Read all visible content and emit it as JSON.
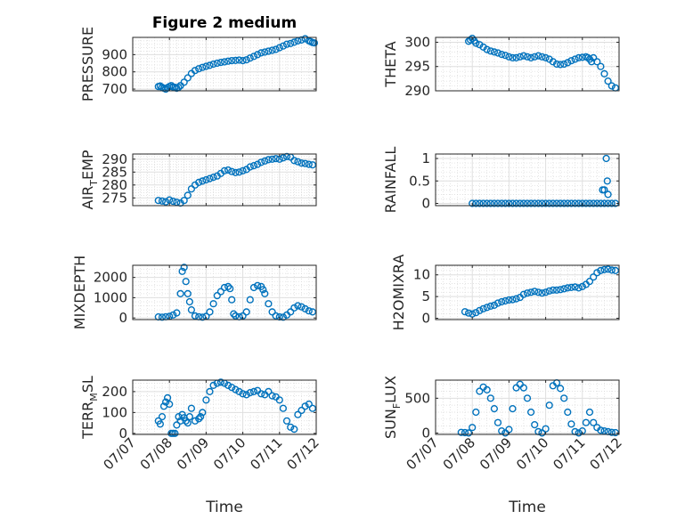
{
  "figure": {
    "title": "Figure 2 medium",
    "xlabel": "Time",
    "marker_color": "#0072BD",
    "xticks": [
      "07/07",
      "07/08",
      "07/09",
      "07/10",
      "07/11",
      "07/12"
    ]
  },
  "chart_data": [
    {
      "type": "scatter",
      "ylabel": "PRESSURE",
      "ylabel_sub": "",
      "yticks": [
        700,
        800,
        900
      ],
      "ylim": [
        690,
        1000
      ],
      "xlim": [
        0,
        5
      ],
      "x": [
        0.7,
        0.75,
        0.8,
        0.85,
        0.9,
        0.95,
        1.0,
        1.05,
        1.1,
        1.15,
        1.2,
        1.25,
        1.3,
        1.4,
        1.5,
        1.6,
        1.7,
        1.8,
        1.9,
        2.0,
        2.1,
        2.2,
        2.3,
        2.4,
        2.5,
        2.6,
        2.7,
        2.8,
        2.9,
        3.0,
        3.1,
        3.2,
        3.3,
        3.4,
        3.5,
        3.6,
        3.7,
        3.8,
        3.9,
        4.0,
        4.1,
        4.2,
        4.3,
        4.4,
        4.5,
        4.6,
        4.7,
        4.8,
        4.85,
        4.9,
        4.95
      ],
      "y": [
        715,
        718,
        710,
        705,
        700,
        708,
        715,
        720,
        712,
        710,
        705,
        710,
        720,
        740,
        765,
        790,
        808,
        818,
        826,
        832,
        838,
        845,
        850,
        855,
        858,
        862,
        865,
        866,
        868,
        865,
        870,
        880,
        890,
        900,
        910,
        915,
        920,
        925,
        930,
        940,
        950,
        960,
        965,
        972,
        980,
        985,
        992,
        980,
        975,
        970,
        968
      ]
    },
    {
      "type": "scatter",
      "ylabel": "THETA",
      "ylabel_sub": "",
      "yticks": [
        290,
        295,
        300
      ],
      "ylim": [
        290,
        301
      ],
      "xlim": [
        0,
        5
      ],
      "x": [
        0.9,
        0.95,
        1.0,
        1.05,
        1.1,
        1.2,
        1.3,
        1.4,
        1.5,
        1.6,
        1.7,
        1.8,
        1.9,
        2.0,
        2.1,
        2.2,
        2.3,
        2.4,
        2.5,
        2.6,
        2.7,
        2.8,
        2.9,
        3.0,
        3.1,
        3.2,
        3.3,
        3.4,
        3.5,
        3.6,
        3.7,
        3.8,
        3.9,
        4.0,
        4.1,
        4.15,
        4.2,
        4.25,
        4.3,
        4.4,
        4.5,
        4.6,
        4.7,
        4.8,
        4.9
      ],
      "y": [
        300.2,
        300.5,
        300.8,
        300.3,
        299.8,
        299.5,
        299.0,
        298.5,
        298.2,
        298.0,
        297.8,
        297.5,
        297.3,
        297.0,
        296.8,
        296.8,
        297.0,
        297.2,
        297.0,
        296.8,
        297.0,
        297.2,
        297.0,
        296.8,
        296.5,
        296.0,
        295.5,
        295.4,
        295.5,
        295.8,
        296.2,
        296.5,
        296.8,
        296.9,
        297.0,
        296.8,
        296.5,
        296.0,
        296.8,
        296.0,
        295.0,
        293.5,
        292.0,
        291.0,
        290.6
      ]
    },
    {
      "type": "scatter",
      "ylabel": "AIR",
      "ylabel_sub": "T",
      "ylabel_suffix": "EMP",
      "yticks": [
        275,
        280,
        285,
        290
      ],
      "ylim": [
        272,
        292
      ],
      "xlim": [
        0,
        5
      ],
      "x": [
        0.7,
        0.8,
        0.9,
        1.0,
        1.1,
        1.2,
        1.3,
        1.4,
        1.5,
        1.6,
        1.7,
        1.8,
        1.9,
        2.0,
        2.1,
        2.2,
        2.3,
        2.4,
        2.5,
        2.6,
        2.7,
        2.8,
        2.9,
        3.0,
        3.1,
        3.2,
        3.3,
        3.4,
        3.5,
        3.6,
        3.7,
        3.8,
        3.9,
        4.0,
        4.1,
        4.2,
        4.3,
        4.4,
        4.5,
        4.6,
        4.7,
        4.8,
        4.9
      ],
      "y": [
        274.0,
        273.8,
        273.5,
        274.2,
        273.7,
        273.3,
        273.0,
        274.0,
        276.0,
        278.5,
        280.0,
        281.0,
        281.5,
        282.0,
        282.5,
        283.0,
        283.5,
        284.5,
        285.5,
        285.8,
        285.2,
        284.8,
        285.0,
        285.5,
        286.0,
        287.0,
        287.5,
        288.0,
        288.8,
        289.3,
        289.8,
        290.0,
        290.2,
        290.0,
        290.5,
        291.0,
        290.8,
        289.5,
        289.0,
        288.5,
        288.3,
        288.0,
        287.8
      ]
    },
    {
      "type": "scatter",
      "ylabel": "RAINFALL",
      "ylabel_sub": "",
      "yticks": [
        0,
        0.5,
        1
      ],
      "ylim": [
        -0.05,
        1.1
      ],
      "xlim": [
        0,
        5
      ],
      "x": [
        1.0,
        1.1,
        1.2,
        1.3,
        1.4,
        1.5,
        1.6,
        1.7,
        1.8,
        1.9,
        2.0,
        2.1,
        2.2,
        2.3,
        2.4,
        2.5,
        2.6,
        2.7,
        2.8,
        2.9,
        3.0,
        3.1,
        3.2,
        3.3,
        3.4,
        3.5,
        3.6,
        3.7,
        3.8,
        3.9,
        4.0,
        4.1,
        4.2,
        4.3,
        4.4,
        4.5,
        4.6,
        4.7,
        4.8,
        4.9,
        4.55,
        4.6,
        4.65,
        4.68,
        4.7
      ],
      "y": [
        0,
        0,
        0,
        0,
        0,
        0,
        0,
        0,
        0,
        0,
        0,
        0,
        0,
        0,
        0,
        0,
        0,
        0,
        0,
        0,
        0,
        0,
        0,
        0,
        0,
        0,
        0,
        0,
        0,
        0,
        0,
        0,
        0,
        0,
        0,
        0,
        0,
        0,
        0,
        0,
        0.3,
        0.3,
        1.0,
        0.5,
        0.2
      ]
    },
    {
      "type": "scatter",
      "ylabel": "MIXDEPTH",
      "ylabel_sub": "",
      "yticks": [
        0,
        1000,
        2000
      ],
      "ylim": [
        -80,
        2600
      ],
      "xlim": [
        0,
        5
      ],
      "x": [
        0.7,
        0.8,
        0.9,
        1.0,
        1.1,
        1.2,
        1.3,
        1.35,
        1.4,
        1.45,
        1.5,
        1.55,
        1.6,
        1.7,
        1.8,
        1.9,
        2.0,
        2.1,
        2.2,
        2.3,
        2.4,
        2.5,
        2.6,
        2.65,
        2.7,
        2.75,
        2.8,
        2.9,
        3.0,
        3.1,
        3.2,
        3.3,
        3.4,
        3.5,
        3.55,
        3.6,
        3.7,
        3.8,
        3.9,
        4.0,
        4.1,
        4.2,
        4.3,
        4.4,
        4.5,
        4.6,
        4.7,
        4.8,
        4.9
      ],
      "y": [
        50,
        40,
        60,
        80,
        150,
        250,
        1200,
        2300,
        2500,
        1800,
        1200,
        800,
        400,
        100,
        60,
        40,
        80,
        300,
        700,
        1100,
        1300,
        1500,
        1550,
        1450,
        900,
        200,
        100,
        60,
        100,
        300,
        900,
        1500,
        1600,
        1550,
        1400,
        1200,
        700,
        300,
        100,
        50,
        40,
        150,
        300,
        500,
        600,
        550,
        450,
        350,
        300
      ]
    },
    {
      "type": "scatter",
      "ylabel": "H2OMIXRA",
      "ylabel_sub": "",
      "yticks": [
        0,
        5,
        10
      ],
      "ylim": [
        -0.3,
        12.2
      ],
      "xlim": [
        0,
        5
      ],
      "x": [
        0.8,
        0.9,
        1.0,
        1.1,
        1.2,
        1.3,
        1.4,
        1.5,
        1.6,
        1.7,
        1.8,
        1.9,
        2.0,
        2.1,
        2.2,
        2.3,
        2.4,
        2.5,
        2.6,
        2.7,
        2.8,
        2.9,
        3.0,
        3.1,
        3.2,
        3.3,
        3.4,
        3.5,
        3.6,
        3.7,
        3.8,
        3.9,
        4.0,
        4.1,
        4.2,
        4.3,
        4.4,
        4.5,
        4.6,
        4.7,
        4.8,
        4.9
      ],
      "y": [
        1.5,
        1.2,
        1.0,
        1.3,
        1.8,
        2.2,
        2.5,
        2.8,
        3.0,
        3.5,
        3.8,
        4.0,
        4.2,
        4.3,
        4.5,
        4.8,
        5.5,
        5.8,
        6.0,
        6.2,
        6.0,
        5.8,
        6.0,
        6.3,
        6.5,
        6.5,
        6.6,
        6.8,
        7.0,
        7.1,
        7.2,
        7.0,
        7.3,
        7.8,
        8.5,
        9.5,
        10.5,
        11.0,
        11.2,
        11.3,
        11.1,
        11.0
      ]
    },
    {
      "type": "scatter",
      "ylabel": "TERR",
      "ylabel_sub": "M",
      "ylabel_suffix": "SL",
      "yticks": [
        0,
        100,
        200
      ],
      "ylim": [
        -5,
        255
      ],
      "xlim": [
        0,
        5
      ],
      "x": [
        0.7,
        0.75,
        0.8,
        0.85,
        0.9,
        0.95,
        1.0,
        1.05,
        1.1,
        1.15,
        1.2,
        1.25,
        1.3,
        1.35,
        1.4,
        1.45,
        1.5,
        1.55,
        1.6,
        1.7,
        1.8,
        1.85,
        1.9,
        2.0,
        2.1,
        2.2,
        2.3,
        2.4,
        2.5,
        2.6,
        2.7,
        2.8,
        2.9,
        3.0,
        3.1,
        3.2,
        3.3,
        3.4,
        3.5,
        3.6,
        3.7,
        3.8,
        3.9,
        4.0,
        4.1,
        4.2,
        4.3,
        4.4,
        4.5,
        4.6,
        4.7,
        4.8,
        4.9
      ],
      "y": [
        60,
        45,
        80,
        130,
        150,
        170,
        140,
        0,
        0,
        0,
        40,
        80,
        60,
        90,
        75,
        60,
        50,
        80,
        120,
        60,
        70,
        80,
        100,
        160,
        200,
        230,
        240,
        245,
        240,
        230,
        220,
        210,
        200,
        190,
        185,
        195,
        200,
        205,
        190,
        185,
        200,
        180,
        175,
        160,
        120,
        60,
        30,
        20,
        90,
        110,
        130,
        140,
        120
      ]
    },
    {
      "type": "scatter",
      "ylabel": "SUN",
      "ylabel_sub": "F",
      "ylabel_suffix": "LUX",
      "yticks": [
        0,
        500
      ],
      "ylim": [
        -20,
        760
      ],
      "xlim": [
        0,
        5
      ],
      "x": [
        0.7,
        0.8,
        0.9,
        1.0,
        1.1,
        1.2,
        1.3,
        1.4,
        1.5,
        1.6,
        1.7,
        1.8,
        1.9,
        2.0,
        2.1,
        2.2,
        2.3,
        2.4,
        2.5,
        2.6,
        2.7,
        2.8,
        2.9,
        3.0,
        3.1,
        3.2,
        3.3,
        3.4,
        3.5,
        3.6,
        3.7,
        3.8,
        3.9,
        4.0,
        4.1,
        4.2,
        4.3,
        4.4,
        4.5,
        4.6,
        4.7,
        4.8,
        4.9
      ],
      "y": [
        10,
        5,
        0,
        80,
        300,
        600,
        660,
        620,
        500,
        350,
        150,
        30,
        0,
        50,
        350,
        650,
        700,
        650,
        500,
        300,
        120,
        20,
        0,
        60,
        400,
        680,
        720,
        640,
        500,
        300,
        130,
        20,
        0,
        30,
        150,
        300,
        150,
        80,
        40,
        30,
        20,
        10,
        5
      ]
    }
  ]
}
